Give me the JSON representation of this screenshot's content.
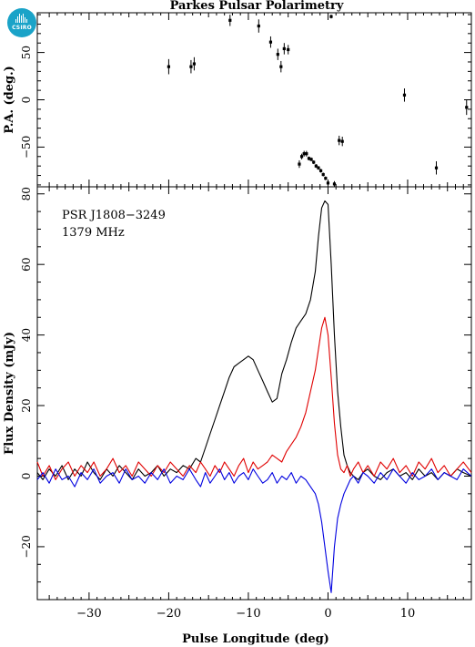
{
  "logo": {
    "text": "CSIRO",
    "color": "#1aa3c8"
  },
  "chart_data": [
    {
      "type": "scatter",
      "title": "Parkes Pulsar Polarimetry",
      "ylabel": "P.A. (deg.)",
      "xlim": [
        -36.5,
        18
      ],
      "ylim": [
        -92,
        92
      ],
      "yticks": [
        -50,
        0,
        50
      ],
      "error_bars": true,
      "points": [
        {
          "x": -20.0,
          "y": 35,
          "err": 8
        },
        {
          "x": -17.2,
          "y": 35,
          "err": 7
        },
        {
          "x": -16.8,
          "y": 38,
          "err": 7
        },
        {
          "x": -12.3,
          "y": 84,
          "err": 6
        },
        {
          "x": -8.7,
          "y": 78,
          "err": 7
        },
        {
          "x": -7.2,
          "y": 61,
          "err": 6
        },
        {
          "x": -6.3,
          "y": 48,
          "err": 6
        },
        {
          "x": -5.9,
          "y": 35,
          "err": 6
        },
        {
          "x": -5.5,
          "y": 54,
          "err": 6
        },
        {
          "x": -5.0,
          "y": 53,
          "err": 5
        },
        {
          "x": 0.4,
          "y": 88,
          "err": 2
        },
        {
          "x": 9.6,
          "y": 5,
          "err": 7
        },
        {
          "x": 13.6,
          "y": -72,
          "err": 7
        },
        {
          "x": 17.4,
          "y": -8,
          "err": 8
        },
        {
          "x": -3.6,
          "y": -68,
          "err": 4
        },
        {
          "x": -3.3,
          "y": -60,
          "err": 3
        },
        {
          "x": -3.0,
          "y": -57,
          "err": 3
        },
        {
          "x": -2.7,
          "y": -57,
          "err": 3
        },
        {
          "x": -2.4,
          "y": -62,
          "err": 2
        },
        {
          "x": -2.1,
          "y": -63,
          "err": 2
        },
        {
          "x": -1.8,
          "y": -66,
          "err": 2
        },
        {
          "x": -1.5,
          "y": -70,
          "err": 2
        },
        {
          "x": -1.2,
          "y": -72,
          "err": 2
        },
        {
          "x": -0.9,
          "y": -75,
          "err": 2
        },
        {
          "x": -0.6,
          "y": -79,
          "err": 2
        },
        {
          "x": -0.3,
          "y": -83,
          "err": 2
        },
        {
          "x": 0.0,
          "y": -88,
          "err": 2
        },
        {
          "x": 0.8,
          "y": -89,
          "err": 3
        },
        {
          "x": 1.4,
          "y": -43,
          "err": 5
        },
        {
          "x": 1.8,
          "y": -44,
          "err": 5
        }
      ]
    },
    {
      "type": "line",
      "xlabel": "Pulse Longitude (deg)",
      "ylabel": "Flux Density (mJy)",
      "xlim": [
        -36.5,
        18
      ],
      "ylim": [
        -35,
        82
      ],
      "xticks": [
        -30,
        -20,
        -10,
        0,
        10
      ],
      "yticks": [
        -20,
        0,
        20,
        40,
        60,
        80
      ],
      "annotations": [
        "PSR J1808−3249",
        "1379 MHz"
      ],
      "series": [
        {
          "color": "#000000",
          "x": [
            -36.5,
            -35.8,
            -35,
            -34.2,
            -33.4,
            -32.6,
            -31.8,
            -31,
            -30.2,
            -29.4,
            -28.6,
            -27.8,
            -27,
            -26.2,
            -25.4,
            -24.6,
            -23.8,
            -23,
            -22.2,
            -21.4,
            -20.6,
            -19.8,
            -19,
            -18.2,
            -17.4,
            -16.6,
            -16,
            -15.4,
            -14.8,
            -14.2,
            -13.6,
            -13,
            -12.4,
            -11.8,
            -11.2,
            -10.6,
            -10,
            -9.4,
            -8.8,
            -8.2,
            -7.6,
            -7,
            -6.4,
            -5.8,
            -5.2,
            -4.6,
            -4,
            -3.4,
            -2.8,
            -2.2,
            -1.6,
            -1.2,
            -0.8,
            -0.4,
            0,
            0.4,
            0.8,
            1.2,
            1.6,
            2,
            2.4,
            2.8,
            3.2,
            3.8,
            4.4,
            5,
            5.8,
            6.6,
            7.4,
            8.2,
            9,
            9.8,
            10.6,
            11.4,
            12.2,
            13,
            13.8,
            14.6,
            15.4,
            16.2,
            17,
            18
          ],
          "y": [
            1,
            -1,
            2,
            0,
            3,
            -1,
            2,
            0,
            4,
            1,
            -1,
            2,
            0,
            3,
            1,
            -1,
            2,
            0,
            1,
            3,
            0,
            2,
            1,
            3,
            2,
            5,
            4,
            8,
            12,
            16,
            20,
            24,
            28,
            31,
            32,
            33,
            34,
            33,
            30,
            27,
            24,
            21,
            22,
            29,
            33,
            38,
            42,
            44,
            46,
            50,
            58,
            68,
            76,
            78,
            77,
            60,
            40,
            24,
            14,
            6,
            3,
            1,
            0,
            -1,
            1,
            2,
            0,
            -1,
            1,
            2,
            0,
            1,
            -1,
            2,
            0,
            1,
            -1,
            1,
            0,
            2,
            1,
            0
          ]
        },
        {
          "color": "#e00000",
          "x": [
            -36.5,
            -35.8,
            -35,
            -34.2,
            -33.4,
            -32.6,
            -31.8,
            -31,
            -30.2,
            -29.4,
            -28.6,
            -27.8,
            -27,
            -26.2,
            -25.4,
            -24.6,
            -23.8,
            -23,
            -22.2,
            -21.4,
            -20.6,
            -19.8,
            -19,
            -18.2,
            -17.4,
            -16.6,
            -16,
            -15.4,
            -14.8,
            -14.2,
            -13.6,
            -13,
            -12.4,
            -11.8,
            -11.2,
            -10.6,
            -10,
            -9.4,
            -8.8,
            -8.2,
            -7.6,
            -7,
            -6.4,
            -5.8,
            -5.2,
            -4.6,
            -4,
            -3.4,
            -2.8,
            -2.2,
            -1.6,
            -1.2,
            -0.8,
            -0.4,
            0,
            0.4,
            0.8,
            1.2,
            1.6,
            2,
            2.4,
            2.8,
            3.2,
            3.8,
            4.4,
            5,
            5.8,
            6.6,
            7.4,
            8.2,
            9,
            9.8,
            10.6,
            11.4,
            12.2,
            13,
            13.8,
            14.6,
            15.4,
            16.2,
            17,
            18
          ],
          "y": [
            4,
            0,
            3,
            -1,
            2,
            4,
            0,
            3,
            1,
            4,
            0,
            2,
            5,
            1,
            3,
            0,
            4,
            2,
            0,
            3,
            1,
            4,
            2,
            0,
            3,
            1,
            4,
            2,
            0,
            3,
            1,
            4,
            2,
            0,
            3,
            5,
            1,
            4,
            2,
            3,
            4,
            6,
            5,
            4,
            7,
            9,
            11,
            14,
            18,
            24,
            30,
            36,
            42,
            45,
            40,
            28,
            15,
            6,
            2,
            1,
            3,
            0,
            2,
            4,
            1,
            3,
            0,
            4,
            2,
            5,
            1,
            3,
            0,
            4,
            2,
            5,
            1,
            3,
            0,
            2,
            4,
            1
          ]
        },
        {
          "color": "#0000e0",
          "x": [
            -36.5,
            -35.8,
            -35,
            -34.2,
            -33.4,
            -32.6,
            -31.8,
            -31,
            -30.2,
            -29.4,
            -28.6,
            -27.8,
            -27,
            -26.2,
            -25.4,
            -24.6,
            -23.8,
            -23,
            -22.2,
            -21.4,
            -20.6,
            -19.8,
            -19,
            -18.2,
            -17.4,
            -16.6,
            -16,
            -15.4,
            -14.8,
            -14.2,
            -13.6,
            -13,
            -12.4,
            -11.8,
            -11.2,
            -10.6,
            -10,
            -9.4,
            -8.8,
            -8.2,
            -7.6,
            -7,
            -6.4,
            -5.8,
            -5.2,
            -4.6,
            -4,
            -3.4,
            -2.8,
            -2.2,
            -1.6,
            -1.2,
            -0.8,
            -0.4,
            0,
            0.4,
            0.8,
            1.2,
            1.6,
            2,
            2.4,
            2.8,
            3.2,
            3.8,
            4.4,
            5,
            5.8,
            6.6,
            7.4,
            8.2,
            9,
            9.8,
            10.6,
            11.4,
            12.2,
            13,
            13.8,
            14.6,
            15.4,
            16.2,
            17,
            18
          ],
          "y": [
            -1,
            1,
            -2,
            2,
            -1,
            0,
            -3,
            1,
            -1,
            2,
            -2,
            0,
            1,
            -2,
            2,
            -1,
            0,
            -2,
            1,
            -1,
            2,
            -2,
            0,
            -1,
            2,
            -1,
            -3,
            1,
            -2,
            0,
            2,
            -1,
            1,
            -2,
            0,
            1,
            -1,
            2,
            0,
            -2,
            -1,
            1,
            -2,
            0,
            -1,
            1,
            -2,
            0,
            -1,
            -3,
            -5,
            -8,
            -13,
            -20,
            -27,
            -33,
            -20,
            -12,
            -8,
            -5,
            -3,
            -1,
            0,
            -2,
            1,
            0,
            -2,
            1,
            -1,
            2,
            0,
            -2,
            1,
            -1,
            0,
            2,
            -1,
            1,
            0,
            -1,
            2,
            0
          ]
        }
      ]
    }
  ]
}
